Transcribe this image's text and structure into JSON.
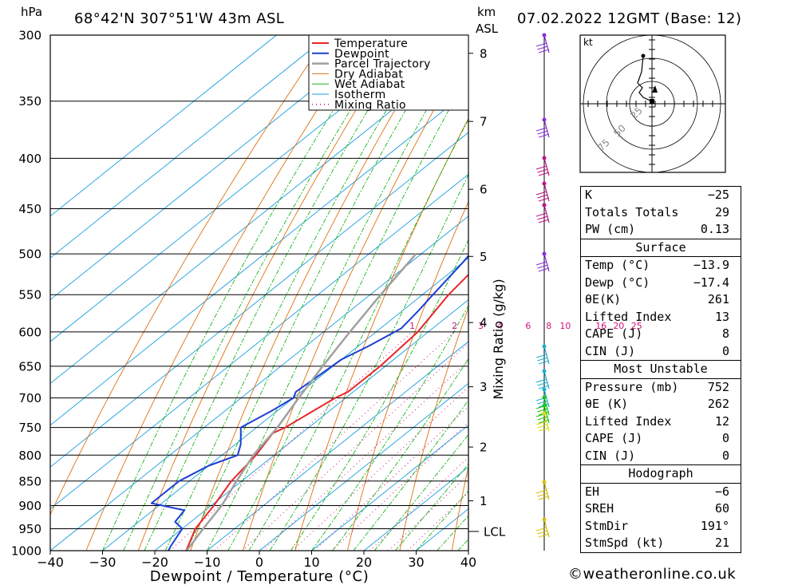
{
  "header": {
    "location": "68°42'N  307°51'W  43m  ASL",
    "datetime": "07.02.2022  12GMT  (Base: 12)",
    "unit_left": "hPa",
    "unit_km": "km",
    "unit_asl": "ASL"
  },
  "chart_data": {
    "type": "line",
    "title": "68°42'N  307°51'W  43m  ASL",
    "xlabel": "Dewpoint / Temperature (°C)",
    "ylabel": "hPa",
    "right_label": "Mixing Ratio (g/kg)",
    "xlim": [
      -40,
      40
    ],
    "ylim": [
      1000,
      300
    ],
    "y_scale": "log",
    "x_ticks": [
      "-40",
      "-30",
      "-20",
      "-10",
      "0",
      "10",
      "20",
      "30",
      "40"
    ],
    "pressure_ticks": [
      300,
      350,
      400,
      450,
      500,
      550,
      600,
      650,
      700,
      750,
      800,
      850,
      900,
      950,
      1000
    ],
    "km_ticks": [
      {
        "label": "8",
        "p": 313
      },
      {
        "label": "7",
        "p": 367
      },
      {
        "label": "6",
        "p": 430
      },
      {
        "label": "5",
        "p": 503
      },
      {
        "label": "4",
        "p": 587
      },
      {
        "label": "3",
        "p": 682
      },
      {
        "label": "2",
        "p": 785
      },
      {
        "label": "1",
        "p": 890
      }
    ],
    "lcl": {
      "label": "LCL",
      "p": 956
    },
    "mixing_ratio_labels": [
      "1",
      "2",
      "3",
      "4",
      "6",
      "8",
      "10",
      "16",
      "20",
      "25"
    ],
    "legend": [
      "Temperature",
      "Dewpoint",
      "Parcel Trajectory",
      "Dry Adiabat",
      "Wet Adiabat",
      "Isotherm",
      "Mixing Ratio"
    ],
    "legend_position": "top-right",
    "colors": {
      "temperature": "#e8262b",
      "dewpoint": "#1c3fd6",
      "parcel": "#a0a0a0",
      "dry": "#e07010",
      "wet": "#1ab51a",
      "isotherm": "#1a9ee0",
      "mixing": "#d0107a"
    },
    "series": [
      {
        "name": "Temperature",
        "points": [
          [
            -14,
            1000
          ],
          [
            -17.5,
            950
          ],
          [
            -19.5,
            900
          ],
          [
            -22,
            850
          ],
          [
            -23.5,
            800
          ],
          [
            -25.5,
            760
          ],
          [
            -24.5,
            750
          ],
          [
            -22,
            700
          ],
          [
            -21,
            690
          ],
          [
            -21,
            650
          ],
          [
            -22,
            600
          ],
          [
            -25,
            550
          ],
          [
            -27,
            500
          ],
          [
            -29,
            450
          ],
          [
            -31.5,
            420
          ],
          [
            -35,
            385
          ],
          [
            -34.5,
            375
          ],
          [
            -33,
            350
          ],
          [
            -32,
            330
          ],
          [
            -33.5,
            310
          ],
          [
            -34,
            300
          ]
        ]
      },
      {
        "name": "Dewpoint",
        "points": [
          [
            -17.4,
            1000
          ],
          [
            -18,
            990
          ],
          [
            -20,
            950
          ],
          [
            -23,
            935
          ],
          [
            -24,
            910
          ],
          [
            -32,
            895
          ],
          [
            -32,
            850
          ],
          [
            -30,
            820
          ],
          [
            -27,
            800
          ],
          [
            -29,
            780
          ],
          [
            -33,
            750
          ],
          [
            -31,
            720
          ],
          [
            -30,
            700
          ],
          [
            -31,
            690
          ],
          [
            -30,
            640
          ],
          [
            -28,
            620
          ],
          [
            -26,
            595
          ],
          [
            -27,
            570
          ],
          [
            -28,
            550
          ],
          [
            -30,
            510
          ],
          [
            -32,
            480
          ],
          [
            -33,
            460
          ],
          [
            -34,
            430
          ],
          [
            -35,
            410
          ],
          [
            -35,
            390
          ],
          [
            -33,
            380
          ],
          [
            -37,
            360
          ],
          [
            -37.5,
            350
          ],
          [
            -38,
            320
          ],
          [
            -37,
            310
          ],
          [
            -35,
            300
          ]
        ]
      },
      {
        "name": "Parcel Trajectory",
        "points": [
          [
            -13.9,
            1000
          ],
          [
            -16,
            950
          ],
          [
            -18,
            900
          ],
          [
            -21,
            850
          ],
          [
            -24,
            800
          ],
          [
            -26,
            750
          ],
          [
            -29,
            700
          ],
          [
            -32,
            650
          ],
          [
            -35,
            600
          ],
          [
            -38,
            550
          ],
          [
            -41,
            500
          ]
        ]
      }
    ]
  },
  "hodograph": {
    "unit": "kt",
    "rings": [
      "25",
      "50",
      "75"
    ]
  },
  "indices": [
    {
      "label": "K",
      "value": "-25"
    },
    {
      "label": "Totals Totals",
      "value": "29"
    },
    {
      "label": "PW (cm)",
      "value": "0.13"
    }
  ],
  "surface": {
    "title": "Surface",
    "rows": [
      {
        "label": "Temp (°C)",
        "value": "-13.9"
      },
      {
        "label": "Dewp (°C)",
        "value": "-17.4"
      },
      {
        "label": "θE(K)",
        "value": "261"
      },
      {
        "label": "Lifted Index",
        "value": "13"
      },
      {
        "label": "CAPE (J)",
        "value": "8"
      },
      {
        "label": "CIN (J)",
        "value": "0"
      }
    ]
  },
  "most_unstable": {
    "title": "Most Unstable",
    "rows": [
      {
        "label": "Pressure (mb)",
        "value": "752"
      },
      {
        "label": "θE (K)",
        "value": "262"
      },
      {
        "label": "Lifted Index",
        "value": "12"
      },
      {
        "label": "CAPE (J)",
        "value": "0"
      },
      {
        "label": "CIN (J)",
        "value": "0"
      }
    ]
  },
  "hodograph_table": {
    "title": "Hodograph",
    "rows": [
      {
        "label": "EH",
        "value": "-6"
      },
      {
        "label": "SREH",
        "value": "60"
      },
      {
        "label": "StmDir",
        "value": "191°"
      },
      {
        "label": "StmSpd (kt)",
        "value": "21"
      }
    ]
  },
  "credit": "©weatheronline.co.uk"
}
